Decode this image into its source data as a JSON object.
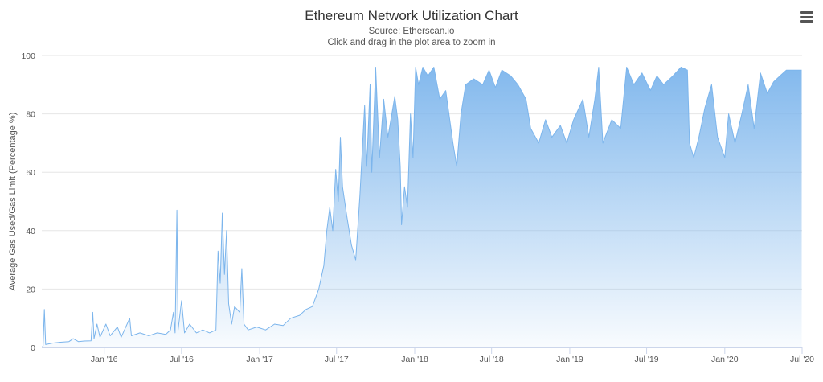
{
  "chart": {
    "title": "Ethereum Network Utilization Chart",
    "subtitle_source": "Source: Etherscan.io",
    "subtitle_hint": "Click and drag in the plot area to zoom in",
    "menu_icon": "hamburger-menu-icon",
    "series_color": "#7cb5ec"
  },
  "chart_data": {
    "type": "area",
    "title": "Ethereum Network Utilization Chart",
    "xlabel": "",
    "ylabel": "Average Gas Used/Gas Limit (Percentage %)",
    "ylim": [
      0,
      100
    ],
    "xlim": [
      "2015-08-07",
      "2020-07-01"
    ],
    "yticks": [
      0,
      20,
      40,
      60,
      80,
      100
    ],
    "xticks": [
      {
        "date": "2016-01-01",
        "label": "Jan '16"
      },
      {
        "date": "2016-07-01",
        "label": "Jul '16"
      },
      {
        "date": "2017-01-01",
        "label": "Jan '17"
      },
      {
        "date": "2017-07-01",
        "label": "Jul '17"
      },
      {
        "date": "2018-01-01",
        "label": "Jan '18"
      },
      {
        "date": "2018-07-01",
        "label": "Jul '18"
      },
      {
        "date": "2019-01-01",
        "label": "Jan '19"
      },
      {
        "date": "2019-07-01",
        "label": "Jul '19"
      },
      {
        "date": "2020-01-01",
        "label": "Jan '20"
      },
      {
        "date": "2020-07-01",
        "label": "Jul '20"
      }
    ],
    "grid": true,
    "legend": "none",
    "series": [
      {
        "color": "#7cb5ec",
        "points": [
          [
            "2015-08-07",
            0.0
          ],
          [
            "2015-08-10",
            0.5
          ],
          [
            "2015-08-13",
            13.0
          ],
          [
            "2015-08-16",
            1.0
          ],
          [
            "2015-09-01",
            1.5
          ],
          [
            "2015-09-20",
            1.8
          ],
          [
            "2015-10-10",
            2.0
          ],
          [
            "2015-10-20",
            3.0
          ],
          [
            "2015-11-01",
            2.0
          ],
          [
            "2015-11-15",
            2.2
          ],
          [
            "2015-12-01",
            2.3
          ],
          [
            "2015-12-05",
            12.0
          ],
          [
            "2015-12-08",
            3.0
          ],
          [
            "2015-12-15",
            8.0
          ],
          [
            "2015-12-22",
            3.5
          ],
          [
            "2016-01-05",
            8.0
          ],
          [
            "2016-01-15",
            4.0
          ],
          [
            "2016-02-01",
            7.0
          ],
          [
            "2016-02-10",
            3.5
          ],
          [
            "2016-03-01",
            10.0
          ],
          [
            "2016-03-05",
            4.0
          ],
          [
            "2016-03-25",
            5.0
          ],
          [
            "2016-04-15",
            4.0
          ],
          [
            "2016-05-05",
            5.0
          ],
          [
            "2016-05-25",
            4.5
          ],
          [
            "2016-06-05",
            6.0
          ],
          [
            "2016-06-12",
            12.0
          ],
          [
            "2016-06-16",
            5.0
          ],
          [
            "2016-06-20",
            47.0
          ],
          [
            "2016-06-23",
            6.0
          ],
          [
            "2016-07-01",
            16.0
          ],
          [
            "2016-07-08",
            5.0
          ],
          [
            "2016-07-20",
            8.0
          ],
          [
            "2016-08-05",
            5.0
          ],
          [
            "2016-08-20",
            6.0
          ],
          [
            "2016-09-05",
            5.0
          ],
          [
            "2016-09-20",
            6.0
          ],
          [
            "2016-09-25",
            33.0
          ],
          [
            "2016-09-30",
            22.0
          ],
          [
            "2016-10-05",
            46.0
          ],
          [
            "2016-10-10",
            25.0
          ],
          [
            "2016-10-15",
            40.0
          ],
          [
            "2016-10-20",
            15.0
          ],
          [
            "2016-10-27",
            8.0
          ],
          [
            "2016-11-03",
            14.0
          ],
          [
            "2016-11-15",
            12.0
          ],
          [
            "2016-11-20",
            27.0
          ],
          [
            "2016-11-25",
            8.0
          ],
          [
            "2016-12-05",
            6.0
          ],
          [
            "2016-12-25",
            7.0
          ],
          [
            "2017-01-15",
            6.0
          ],
          [
            "2017-02-05",
            8.0
          ],
          [
            "2017-02-25",
            7.5
          ],
          [
            "2017-03-15",
            10.0
          ],
          [
            "2017-04-05",
            11.0
          ],
          [
            "2017-04-20",
            13.0
          ],
          [
            "2017-05-05",
            14.0
          ],
          [
            "2017-05-20",
            20.0
          ],
          [
            "2017-06-01",
            28.0
          ],
          [
            "2017-06-08",
            40.0
          ],
          [
            "2017-06-15",
            48.0
          ],
          [
            "2017-06-22",
            40.0
          ],
          [
            "2017-06-29",
            61.0
          ],
          [
            "2017-07-05",
            50.0
          ],
          [
            "2017-07-10",
            72.0
          ],
          [
            "2017-07-15",
            55.0
          ],
          [
            "2017-07-25",
            45.0
          ],
          [
            "2017-08-05",
            35.0
          ],
          [
            "2017-08-15",
            30.0
          ],
          [
            "2017-08-25",
            52.0
          ],
          [
            "2017-09-05",
            83.0
          ],
          [
            "2017-09-10",
            62.0
          ],
          [
            "2017-09-18",
            90.0
          ],
          [
            "2017-09-22",
            60.0
          ],
          [
            "2017-10-01",
            96.0
          ],
          [
            "2017-10-10",
            65.0
          ],
          [
            "2017-10-20",
            85.0
          ],
          [
            "2017-10-30",
            72.0
          ],
          [
            "2017-11-15",
            86.0
          ],
          [
            "2017-11-22",
            78.0
          ],
          [
            "2017-11-28",
            62.0
          ],
          [
            "2017-12-01",
            42.0
          ],
          [
            "2017-12-08",
            55.0
          ],
          [
            "2017-12-15",
            48.0
          ],
          [
            "2017-12-22",
            80.0
          ],
          [
            "2017-12-28",
            65.0
          ],
          [
            "2018-01-03",
            96.0
          ],
          [
            "2018-01-10",
            90.0
          ],
          [
            "2018-01-20",
            96.0
          ],
          [
            "2018-02-01",
            93.0
          ],
          [
            "2018-02-15",
            96.0
          ],
          [
            "2018-03-01",
            85.0
          ],
          [
            "2018-03-15",
            88.0
          ],
          [
            "2018-04-01",
            70.0
          ],
          [
            "2018-04-10",
            62.0
          ],
          [
            "2018-04-20",
            80.0
          ],
          [
            "2018-05-01",
            90.0
          ],
          [
            "2018-05-20",
            92.0
          ],
          [
            "2018-06-10",
            90.0
          ],
          [
            "2018-06-25",
            95.0
          ],
          [
            "2018-07-10",
            89.0
          ],
          [
            "2018-07-25",
            95.0
          ],
          [
            "2018-08-15",
            93.0
          ],
          [
            "2018-09-01",
            90.0
          ],
          [
            "2018-09-20",
            85.0
          ],
          [
            "2018-10-01",
            75.0
          ],
          [
            "2018-10-20",
            70.0
          ],
          [
            "2018-11-05",
            78.0
          ],
          [
            "2018-11-20",
            72.0
          ],
          [
            "2018-12-10",
            76.0
          ],
          [
            "2018-12-25",
            70.0
          ],
          [
            "2019-01-10",
            78.0
          ],
          [
            "2019-02-01",
            85.0
          ],
          [
            "2019-02-15",
            72.0
          ],
          [
            "2019-03-01",
            85.0
          ],
          [
            "2019-03-10",
            96.0
          ],
          [
            "2019-03-20",
            70.0
          ],
          [
            "2019-04-10",
            78.0
          ],
          [
            "2019-05-01",
            75.0
          ],
          [
            "2019-05-15",
            96.0
          ],
          [
            "2019-06-01",
            90.0
          ],
          [
            "2019-06-20",
            94.0
          ],
          [
            "2019-07-10",
            88.0
          ],
          [
            "2019-07-25",
            93.0
          ],
          [
            "2019-08-10",
            90.0
          ],
          [
            "2019-09-01",
            93.0
          ],
          [
            "2019-09-20",
            96.0
          ],
          [
            "2019-10-05",
            95.0
          ],
          [
            "2019-10-10",
            70.0
          ],
          [
            "2019-10-20",
            65.0
          ],
          [
            "2019-11-01",
            72.0
          ],
          [
            "2019-11-15",
            82.0
          ],
          [
            "2019-12-01",
            90.0
          ],
          [
            "2019-12-15",
            72.0
          ],
          [
            "2020-01-01",
            65.0
          ],
          [
            "2020-01-10",
            80.0
          ],
          [
            "2020-01-25",
            70.0
          ],
          [
            "2020-02-10",
            80.0
          ],
          [
            "2020-02-25",
            90.0
          ],
          [
            "2020-03-10",
            75.0
          ],
          [
            "2020-03-25",
            94.0
          ],
          [
            "2020-04-10",
            87.0
          ],
          [
            "2020-04-25",
            91.0
          ],
          [
            "2020-05-10",
            93.0
          ],
          [
            "2020-05-25",
            95.0
          ],
          [
            "2020-06-15",
            95.0
          ],
          [
            "2020-06-30",
            95.0
          ]
        ]
      }
    ]
  }
}
